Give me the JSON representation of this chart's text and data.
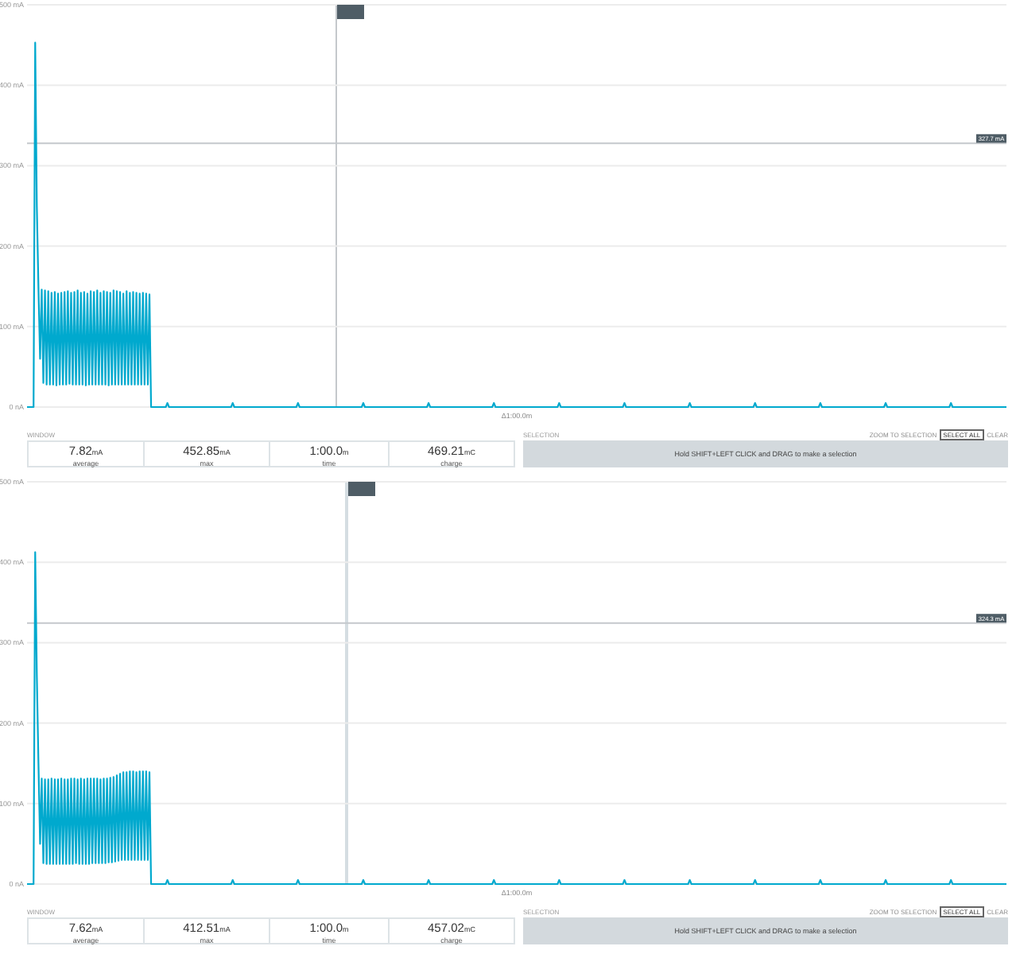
{
  "chart_data": [
    {
      "type": "line",
      "color": "#00a9ce",
      "xlabel": "Δ1:00.0m",
      "ylim": [
        0,
        500
      ],
      "yticks": [
        {
          "value": 0,
          "label": "0 nA"
        },
        {
          "value": 100,
          "label": "100 mA"
        },
        {
          "value": 200,
          "label": "200 mA"
        },
        {
          "value": 300,
          "label": "300 mA"
        },
        {
          "value": 400,
          "label": "400 mA"
        },
        {
          "value": 500,
          "label": "500 mA"
        }
      ],
      "grid": "y",
      "tick_labels": "y",
      "categories": [
        null,
        null,
        null,
        null,
        null,
        null,
        null,
        null,
        null,
        null,
        null,
        null,
        null,
        null,
        null,
        null,
        null,
        null,
        null,
        null,
        null,
        null,
        null,
        null,
        null,
        null,
        null,
        null,
        null,
        null,
        null,
        null,
        null,
        null,
        null,
        null,
        null,
        null,
        null,
        null,
        null,
        null,
        null,
        null,
        null,
        null,
        null,
        null,
        null,
        null,
        null,
        null,
        null,
        null,
        null,
        null,
        null,
        null,
        null,
        null,
        null,
        null,
        null,
        null,
        null,
        null,
        null,
        null,
        null,
        null,
        null,
        null,
        null,
        null,
        null,
        null,
        null,
        null,
        null,
        null,
        null,
        null,
        null,
        null,
        null,
        null,
        null,
        null,
        null,
        null,
        null,
        null,
        null,
        null,
        null,
        null,
        null,
        null,
        null,
        null,
        null,
        null,
        null,
        null,
        null,
        null,
        null,
        null,
        null,
        null,
        null,
        null,
        null,
        null,
        null,
        null,
        null,
        null,
        null,
        null,
        null,
        null,
        null,
        null,
        null,
        null,
        null,
        null,
        null,
        null,
        null,
        null,
        null,
        null,
        null,
        null,
        null,
        null,
        null,
        null,
        null,
        null,
        null,
        null,
        null,
        null,
        null,
        null,
        null,
        null,
        null,
        null,
        null,
        null,
        null,
        null,
        null,
        null,
        null,
        null,
        null,
        null,
        null,
        null,
        null,
        null,
        null,
        null,
        null,
        null,
        null,
        null,
        null,
        null,
        null,
        null,
        null,
        null,
        null,
        null,
        null,
        null,
        null,
        null,
        null,
        null,
        null,
        null,
        null,
        null,
        null,
        null,
        null,
        null,
        null,
        null,
        null,
        null,
        null,
        null,
        null,
        null,
        null,
        null,
        null,
        null,
        null,
        null,
        null,
        null,
        null,
        null,
        null,
        null,
        null,
        null,
        null,
        null,
        null,
        null,
        null,
        null,
        null,
        null,
        null,
        null,
        null,
        null,
        null,
        null,
        null,
        null,
        null,
        null,
        null,
        null,
        null,
        null,
        null,
        null,
        null,
        null,
        null,
        null,
        null,
        null,
        null,
        null,
        null,
        null,
        null,
        null,
        null,
        null,
        null,
        null,
        null,
        null,
        null,
        null,
        null,
        null,
        null,
        null,
        null,
        null,
        null,
        null,
        null,
        null,
        null,
        null,
        null,
        null,
        null,
        null,
        null,
        null,
        null,
        null,
        null,
        null,
        null,
        null,
        null,
        null,
        null,
        null,
        null,
        null,
        null,
        null,
        null,
        null,
        null,
        null,
        null,
        null,
        null,
        null,
        null,
        null,
        null,
        null,
        null,
        null,
        null,
        null,
        null,
        null,
        null,
        null,
        null,
        null,
        null,
        null,
        null,
        null,
        null,
        null,
        null,
        null,
        null,
        null,
        null,
        null,
        null,
        null,
        null,
        null,
        null,
        null,
        null,
        null,
        null,
        null,
        null,
        null,
        null,
        null,
        null,
        null,
        null,
        null,
        null,
        null,
        null,
        null,
        null,
        null,
        null,
        null,
        null,
        null,
        null,
        null,
        null,
        null,
        null,
        null,
        null,
        null,
        null,
        null,
        null,
        null,
        null,
        null,
        null,
        null,
        null,
        null,
        null,
        null,
        null,
        null,
        null,
        null,
        null,
        null,
        null,
        null,
        null,
        null,
        null,
        null,
        null,
        null,
        null,
        null,
        null,
        null,
        null,
        null,
        null,
        null,
        null,
        null,
        null,
        null,
        null,
        null,
        null,
        null,
        null,
        null,
        null,
        null,
        null,
        null,
        null,
        null,
        null,
        null,
        null,
        null,
        null,
        null,
        null,
        null,
        null,
        null,
        null,
        null,
        null,
        null,
        null,
        null,
        null,
        null,
        null,
        null,
        null,
        null,
        null,
        null,
        null,
        null,
        null,
        null,
        null,
        null,
        null,
        null,
        null,
        null,
        null,
        null,
        null,
        null,
        null,
        null,
        null,
        null,
        null,
        null,
        null,
        null,
        null,
        null,
        null,
        null,
        null,
        null,
        null,
        null,
        null,
        null,
        null,
        null,
        null,
        null,
        null,
        null,
        null,
        null,
        null,
        null,
        null,
        null,
        null,
        null,
        null,
        null,
        null,
        null,
        null,
        null,
        null,
        null,
        null,
        null,
        null,
        null,
        null,
        null,
        null,
        null,
        null,
        null,
        null,
        null,
        null,
        null,
        null,
        null,
        null,
        null,
        null,
        null,
        null,
        null,
        null,
        null,
        null,
        null,
        null,
        null,
        null,
        null,
        null,
        null,
        null,
        null,
        null,
        null,
        null,
        null,
        null,
        null,
        null,
        null,
        null,
        null,
        null,
        null,
        null,
        null,
        null,
        null,
        null,
        null,
        null,
        null,
        null,
        null,
        null,
        null,
        null,
        null,
        null,
        null,
        null,
        null,
        null,
        null,
        null,
        null,
        null,
        null,
        null,
        null,
        null,
        null,
        null,
        null,
        null,
        null,
        null,
        null,
        null,
        null,
        null,
        null,
        null,
        null,
        null,
        null,
        null,
        null,
        null,
        null,
        null,
        null,
        null,
        null,
        null,
        null,
        null,
        null,
        null,
        null,
        null,
        null,
        null,
        null,
        null,
        null,
        null,
        null,
        null
      ],
      "values": [
        0,
        0,
        0,
        0,
        0,
        452.85,
        250,
        148,
        60,
        146,
        30,
        145,
        28,
        144,
        28,
        142,
        28,
        143,
        27,
        141,
        28,
        142,
        28,
        143,
        28,
        144,
        29,
        142,
        28,
        143,
        28,
        145,
        28,
        142,
        28,
        143,
        27,
        141,
        28,
        144,
        28,
        143,
        28,
        145,
        28,
        142,
        28,
        144,
        28,
        143,
        27,
        142,
        28,
        145,
        28,
        144,
        28,
        143,
        28,
        141,
        28,
        144,
        28,
        142,
        28,
        143,
        28,
        142,
        28,
        141,
        28,
        142,
        28,
        141,
        28,
        140,
        0,
        0,
        0,
        0,
        0,
        0,
        0,
        0,
        0,
        0,
        5,
        0,
        0,
        0,
        0,
        0,
        0,
        0,
        0,
        0,
        0,
        0,
        0,
        0,
        0,
        0,
        0,
        0,
        0,
        0,
        0,
        0,
        0,
        0,
        0,
        0,
        0,
        0,
        0,
        0,
        0,
        0,
        0,
        0,
        0,
        0,
        0,
        0,
        0,
        0,
        5,
        0,
        0,
        0,
        0,
        0,
        0,
        0,
        0,
        0,
        0,
        0,
        0,
        0,
        0,
        0,
        0,
        0,
        0,
        0,
        0,
        0,
        0,
        0,
        0,
        0,
        0,
        0,
        0,
        0,
        0,
        0,
        0,
        0,
        0,
        0,
        0,
        0,
        0,
        0,
        5,
        0,
        0,
        0,
        0,
        0,
        0,
        0,
        0,
        0,
        0,
        0,
        0,
        0,
        0,
        0,
        0,
        0,
        0,
        0,
        0,
        0,
        0,
        0,
        0,
        0,
        0,
        0,
        0,
        0,
        0,
        0,
        0,
        0,
        0,
        0,
        0,
        0,
        0,
        0,
        5,
        0,
        0,
        0,
        0,
        0,
        0,
        0,
        0,
        0,
        0,
        0,
        0,
        0,
        0,
        0,
        0,
        0,
        0,
        0,
        0,
        0,
        0,
        0,
        0,
        0,
        0,
        0,
        0,
        0,
        0,
        0,
        0,
        0,
        0,
        0,
        0,
        0,
        0,
        0,
        5,
        0,
        0,
        0,
        0,
        0,
        0,
        0,
        0,
        0,
        0,
        0,
        0,
        0,
        0,
        0,
        0,
        0,
        0,
        0,
        0,
        0,
        0,
        0,
        0,
        0,
        0,
        0,
        0,
        0,
        0,
        0,
        0,
        0,
        0,
        0,
        0,
        0,
        0,
        0,
        5,
        0,
        0,
        0,
        0,
        0,
        0,
        0,
        0,
        0,
        0,
        0,
        0,
        0,
        0,
        0,
        0,
        0,
        0,
        0,
        0,
        0,
        0,
        0,
        0,
        0,
        0,
        0,
        0,
        0,
        0,
        0,
        0,
        0,
        0,
        0,
        0,
        0,
        0,
        0,
        5,
        0,
        0,
        0,
        0,
        0,
        0,
        0,
        0,
        0,
        0,
        0,
        0,
        0,
        0,
        0,
        0,
        0,
        0,
        0,
        0,
        0,
        0,
        0,
        0,
        0,
        0,
        0,
        0,
        0,
        0,
        0,
        0,
        0,
        0,
        0,
        0,
        0,
        0,
        0,
        5,
        0,
        0,
        0,
        0,
        0,
        0,
        0,
        0,
        0,
        0,
        0,
        0,
        0,
        0,
        0,
        0,
        0,
        0,
        0,
        0,
        0,
        0,
        0,
        0,
        0,
        0,
        0,
        0,
        0,
        0,
        0,
        0,
        0,
        0,
        0,
        0,
        0,
        0,
        0,
        5,
        0,
        0,
        0,
        0,
        0,
        0,
        0,
        0,
        0,
        0,
        0,
        0,
        0,
        0,
        0,
        0,
        0,
        0,
        0,
        0,
        0,
        0,
        0,
        0,
        0,
        0,
        0,
        0,
        0,
        0,
        0,
        0,
        0,
        0,
        0,
        0,
        0,
        0,
        0,
        5,
        0,
        0,
        0,
        0,
        0,
        0,
        0,
        0,
        0,
        0,
        0,
        0,
        0,
        0,
        0,
        0,
        0,
        0,
        0,
        0,
        0,
        0,
        0,
        0,
        0,
        0,
        0,
        0,
        0,
        0,
        0,
        0,
        0,
        0,
        0,
        0,
        0,
        0,
        0,
        5,
        0,
        0,
        0,
        0,
        0,
        0,
        0,
        0,
        0,
        0,
        0,
        0,
        0,
        0,
        0,
        0,
        0,
        0,
        0,
        0,
        0,
        0,
        0,
        0,
        0,
        0,
        0,
        0,
        0,
        0,
        0,
        0,
        0,
        0,
        0,
        0,
        0,
        0,
        0,
        5,
        0,
        0,
        0,
        0,
        0,
        0,
        0,
        0,
        0,
        0,
        0,
        0,
        0,
        0,
        0,
        0,
        0,
        0,
        0,
        0,
        0,
        0,
        0,
        0,
        0,
        0,
        0,
        0,
        0,
        0,
        0,
        0,
        0,
        0,
        0,
        0,
        0,
        0,
        0,
        5,
        0,
        0,
        0,
        0,
        0,
        0,
        0,
        0,
        0,
        0,
        0,
        0,
        0,
        0,
        0,
        0,
        0,
        0,
        0,
        0,
        0,
        0,
        0,
        0,
        0,
        0,
        0,
        0,
        0,
        0,
        0,
        0,
        0,
        0
      ],
      "ref_lines": [
        {
          "axis": "y",
          "value": 327.7,
          "label": "327.7 mA",
          "color": "#c4c8cc"
        }
      ],
      "annotations": [
        "WINDOW",
        "7.82mA",
        "average",
        "452.85mA",
        "max",
        "1:00.0m",
        "time",
        "469.21mC",
        "charge",
        "SELECTION",
        "ZOOM TO SELECTION",
        "SELECT ALL",
        "CLEAR",
        "Hold SHIFT+LEFT CLICK and DRAG to make a selection"
      ]
    },
    {
      "type": "line",
      "color": "#00a9ce",
      "xlabel": "Δ1:00.0m",
      "ylim": [
        0,
        500
      ],
      "yticks": [
        {
          "value": 0,
          "label": "0 nA"
        },
        {
          "value": 100,
          "label": "100 mA"
        },
        {
          "value": 200,
          "label": "200 mA"
        },
        {
          "value": 300,
          "label": "300 mA"
        },
        {
          "value": 400,
          "label": "400 mA"
        },
        {
          "value": 500,
          "label": "500 mA"
        }
      ],
      "grid": "y",
      "tick_labels": "y",
      "categories": [
        null,
        null,
        null,
        null,
        null,
        null,
        null,
        null,
        null,
        null,
        null,
        null,
        null,
        null,
        null,
        null,
        null,
        null,
        null,
        null,
        null,
        null,
        null,
        null,
        null,
        null,
        null,
        null,
        null,
        null,
        null,
        null,
        null,
        null,
        null,
        null,
        null,
        null,
        null,
        null,
        null,
        null,
        null,
        null,
        null,
        null,
        null,
        null,
        null,
        null,
        null,
        null,
        null,
        null,
        null,
        null,
        null,
        null,
        null,
        null,
        null,
        null,
        null,
        null,
        null,
        null,
        null,
        null,
        null,
        null,
        null,
        null,
        null,
        null,
        null,
        null,
        null,
        null,
        null,
        null,
        null,
        null,
        null,
        null,
        null,
        null,
        null,
        null,
        null,
        null,
        null,
        null,
        null,
        null,
        null,
        null,
        null,
        null,
        null,
        null,
        null,
        null,
        null,
        null,
        null,
        null,
        null,
        null,
        null,
        null,
        null,
        null,
        null,
        null,
        null,
        null,
        null,
        null,
        null,
        null,
        null,
        null,
        null,
        null,
        null,
        null,
        null,
        null,
        null,
        null,
        null,
        null,
        null,
        null,
        null,
        null,
        null,
        null,
        null,
        null,
        null,
        null,
        null,
        null,
        null,
        null,
        null,
        null,
        null,
        null,
        null,
        null,
        null,
        null,
        null,
        null,
        null,
        null,
        null,
        null,
        null,
        null,
        null,
        null,
        null,
        null,
        null,
        null,
        null,
        null,
        null,
        null,
        null,
        null,
        null,
        null,
        null,
        null,
        null,
        null,
        null,
        null,
        null,
        null,
        null,
        null,
        null,
        null,
        null,
        null,
        null,
        null,
        null,
        null,
        null,
        null,
        null,
        null,
        null,
        null,
        null,
        null,
        null,
        null,
        null,
        null,
        null,
        null,
        null,
        null,
        null,
        null,
        null,
        null,
        null,
        null,
        null,
        null,
        null,
        null,
        null,
        null,
        null,
        null,
        null,
        null,
        null,
        null,
        null,
        null,
        null,
        null,
        null,
        null,
        null,
        null,
        null,
        null,
        null,
        null,
        null,
        null,
        null,
        null,
        null,
        null,
        null,
        null,
        null,
        null,
        null,
        null,
        null,
        null,
        null,
        null,
        null,
        null,
        null,
        null,
        null,
        null,
        null,
        null,
        null,
        null,
        null,
        null,
        null,
        null,
        null,
        null,
        null,
        null,
        null,
        null,
        null,
        null,
        null,
        null,
        null,
        null,
        null,
        null,
        null,
        null,
        null,
        null,
        null,
        null,
        null,
        null,
        null,
        null,
        null,
        null,
        null,
        null,
        null,
        null,
        null,
        null,
        null,
        null,
        null,
        null,
        null,
        null,
        null,
        null,
        null,
        null,
        null,
        null,
        null,
        null,
        null,
        null,
        null,
        null,
        null,
        null,
        null,
        null,
        null,
        null,
        null,
        null,
        null,
        null,
        null,
        null,
        null,
        null,
        null,
        null,
        null,
        null,
        null,
        null,
        null,
        null,
        null,
        null,
        null,
        null,
        null,
        null,
        null,
        null,
        null,
        null,
        null,
        null,
        null,
        null,
        null,
        null,
        null,
        null,
        null,
        null,
        null,
        null,
        null,
        null,
        null,
        null,
        null,
        null,
        null,
        null,
        null,
        null,
        null,
        null,
        null,
        null,
        null,
        null,
        null,
        null,
        null,
        null,
        null,
        null,
        null,
        null,
        null,
        null,
        null,
        null,
        null,
        null,
        null,
        null,
        null,
        null,
        null,
        null,
        null,
        null,
        null,
        null,
        null,
        null,
        null,
        null,
        null,
        null,
        null,
        null,
        null,
        null,
        null,
        null,
        null,
        null,
        null,
        null,
        null,
        null,
        null,
        null,
        null,
        null,
        null,
        null,
        null,
        null,
        null,
        null,
        null,
        null,
        null,
        null,
        null,
        null,
        null,
        null,
        null,
        null,
        null,
        null,
        null,
        null,
        null,
        null,
        null,
        null,
        null,
        null,
        null,
        null,
        null,
        null,
        null,
        null,
        null,
        null,
        null,
        null,
        null,
        null,
        null,
        null,
        null,
        null,
        null,
        null,
        null,
        null,
        null,
        null,
        null,
        null,
        null,
        null,
        null,
        null,
        null,
        null,
        null,
        null,
        null,
        null,
        null,
        null,
        null,
        null,
        null,
        null,
        null,
        null,
        null,
        null,
        null,
        null,
        null,
        null,
        null,
        null,
        null,
        null,
        null,
        null,
        null,
        null,
        null,
        null,
        null,
        null,
        null,
        null,
        null,
        null,
        null,
        null,
        null,
        null,
        null,
        null,
        null,
        null,
        null,
        null,
        null,
        null,
        null,
        null,
        null,
        null,
        null,
        null,
        null,
        null,
        null,
        null,
        null,
        null,
        null,
        null,
        null,
        null,
        null,
        null,
        null,
        null,
        null,
        null,
        null,
        null,
        null,
        null,
        null,
        null,
        null,
        null,
        null,
        null,
        null,
        null,
        null,
        null,
        null,
        null,
        null,
        null,
        null,
        null,
        null,
        null,
        null,
        null,
        null,
        null,
        null,
        null,
        null,
        null,
        null,
        null,
        null,
        null,
        null,
        null,
        null,
        null,
        null,
        null,
        null,
        null,
        null,
        null,
        null,
        null,
        null,
        null,
        null,
        null,
        null
      ],
      "values": [
        0,
        0,
        0,
        0,
        0,
        412.51,
        260,
        150,
        50,
        131,
        26,
        130,
        25,
        130,
        25,
        131,
        25,
        130,
        25,
        130,
        25,
        131,
        25,
        130,
        25,
        130,
        25,
        131,
        25,
        131,
        26,
        130,
        25,
        131,
        25,
        130,
        25,
        131,
        25,
        131,
        26,
        131,
        26,
        131,
        26,
        130,
        26,
        131,
        26,
        131,
        27,
        132,
        27,
        133,
        28,
        135,
        29,
        137,
        30,
        139,
        30,
        139,
        30,
        140,
        30,
        140,
        30,
        139,
        30,
        140,
        30,
        140,
        30,
        140,
        30,
        139,
        0,
        0,
        0,
        0,
        0,
        0,
        0,
        0,
        0,
        0,
        5,
        0,
        0,
        0,
        0,
        0,
        0,
        0,
        0,
        0,
        0,
        0,
        0,
        0,
        0,
        0,
        0,
        0,
        0,
        0,
        0,
        0,
        0,
        0,
        0,
        0,
        0,
        0,
        0,
        0,
        0,
        0,
        0,
        0,
        0,
        0,
        0,
        0,
        0,
        0,
        5,
        0,
        0,
        0,
        0,
        0,
        0,
        0,
        0,
        0,
        0,
        0,
        0,
        0,
        0,
        0,
        0,
        0,
        0,
        0,
        0,
        0,
        0,
        0,
        0,
        0,
        0,
        0,
        0,
        0,
        0,
        0,
        0,
        0,
        0,
        0,
        0,
        0,
        0,
        0,
        5,
        0,
        0,
        0,
        0,
        0,
        0,
        0,
        0,
        0,
        0,
        0,
        0,
        0,
        0,
        0,
        0,
        0,
        0,
        0,
        0,
        0,
        0,
        0,
        0,
        0,
        0,
        0,
        0,
        0,
        0,
        0,
        0,
        0,
        0,
        0,
        0,
        0,
        0,
        0,
        5,
        0,
        0,
        0,
        0,
        0,
        0,
        0,
        0,
        0,
        0,
        0,
        0,
        0,
        0,
        0,
        0,
        0,
        0,
        0,
        0,
        0,
        0,
        0,
        0,
        0,
        0,
        0,
        0,
        0,
        0,
        0,
        0,
        0,
        0,
        0,
        0,
        0,
        0,
        0,
        5,
        0,
        0,
        0,
        0,
        0,
        0,
        0,
        0,
        0,
        0,
        0,
        0,
        0,
        0,
        0,
        0,
        0,
        0,
        0,
        0,
        0,
        0,
        0,
        0,
        0,
        0,
        0,
        0,
        0,
        0,
        0,
        0,
        0,
        0,
        0,
        0,
        0,
        0,
        0,
        5,
        0,
        0,
        0,
        0,
        0,
        0,
        0,
        0,
        0,
        0,
        0,
        0,
        0,
        0,
        0,
        0,
        0,
        0,
        0,
        0,
        0,
        0,
        0,
        0,
        0,
        0,
        0,
        0,
        0,
        0,
        0,
        0,
        0,
        0,
        0,
        0,
        0,
        0,
        0,
        5,
        0,
        0,
        0,
        0,
        0,
        0,
        0,
        0,
        0,
        0,
        0,
        0,
        0,
        0,
        0,
        0,
        0,
        0,
        0,
        0,
        0,
        0,
        0,
        0,
        0,
        0,
        0,
        0,
        0,
        0,
        0,
        0,
        0,
        0,
        0,
        0,
        0,
        0,
        0,
        5,
        0,
        0,
        0,
        0,
        0,
        0,
        0,
        0,
        0,
        0,
        0,
        0,
        0,
        0,
        0,
        0,
        0,
        0,
        0,
        0,
        0,
        0,
        0,
        0,
        0,
        0,
        0,
        0,
        0,
        0,
        0,
        0,
        0,
        0,
        0,
        0,
        0,
        0,
        0,
        5,
        0,
        0,
        0,
        0,
        0,
        0,
        0,
        0,
        0,
        0,
        0,
        0,
        0,
        0,
        0,
        0,
        0,
        0,
        0,
        0,
        0,
        0,
        0,
        0,
        0,
        0,
        0,
        0,
        0,
        0,
        0,
        0,
        0,
        0,
        0,
        0,
        0,
        0,
        0,
        5,
        0,
        0,
        0,
        0,
        0,
        0,
        0,
        0,
        0,
        0,
        0,
        0,
        0,
        0,
        0,
        0,
        0,
        0,
        0,
        0,
        0,
        0,
        0,
        0,
        0,
        0,
        0,
        0,
        0,
        0,
        0,
        0,
        0,
        0,
        0,
        0,
        0,
        0,
        0,
        5,
        0,
        0,
        0,
        0,
        0,
        0,
        0,
        0,
        0,
        0,
        0,
        0,
        0,
        0,
        0,
        0,
        0,
        0,
        0,
        0,
        0,
        0,
        0,
        0,
        0,
        0,
        0,
        0,
        0,
        0,
        0,
        0,
        0,
        0,
        0,
        0,
        0,
        0,
        0,
        5,
        0,
        0,
        0,
        0,
        0,
        0,
        0,
        0,
        0,
        0,
        0,
        0,
        0,
        0,
        0,
        0,
        0,
        0,
        0,
        0,
        0,
        0,
        0,
        0,
        0,
        0,
        0,
        0,
        0,
        0,
        0,
        0,
        0,
        0,
        0,
        0,
        0,
        0,
        0,
        5,
        0,
        0,
        0,
        0,
        0,
        0,
        0,
        0,
        0,
        0,
        0,
        0,
        0,
        0,
        0,
        0,
        0,
        0,
        0,
        0,
        0,
        0,
        0,
        0,
        0,
        0,
        0,
        0,
        0,
        0,
        0,
        0,
        0,
        0
      ],
      "ref_lines": [
        {
          "axis": "y",
          "value": 324.3,
          "label": "324.3 mA",
          "color": "#c4c8cc"
        }
      ],
      "annotations": [
        "WINDOW",
        "7.62mA",
        "average",
        "412.51mA",
        "max",
        "1:00.0m",
        "time",
        "457.02mC",
        "charge",
        "SELECTION",
        "ZOOM TO SELECTION",
        "SELECT ALL",
        "CLEAR",
        "Hold SHIFT+LEFT CLICK and DRAG to make a selection"
      ]
    }
  ]
}
